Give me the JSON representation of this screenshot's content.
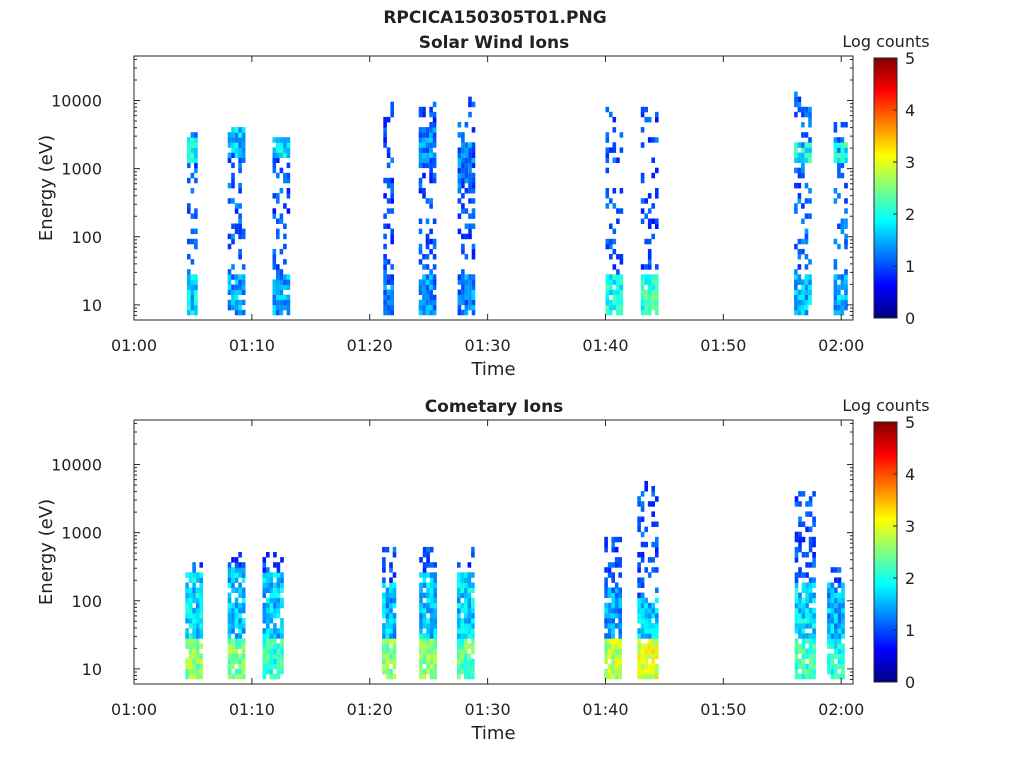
{
  "figure": {
    "title": "RPCICA150305T01.PNG"
  },
  "colormap": [
    "#00007f",
    "#0000ff",
    "#007fff",
    "#00ffff",
    "#7fff7f",
    "#ffff00",
    "#ff7f00",
    "#ff0000",
    "#7f0000"
  ],
  "chart_data": [
    {
      "type": "heatmap",
      "title": "Solar Wind Ions",
      "xlabel": "Time",
      "ylabel": "Energy (eV)",
      "x_ticks": [
        "01:00",
        "01:10",
        "01:20",
        "01:30",
        "01:40",
        "01:50",
        "02:00"
      ],
      "x_range_minutes": [
        0,
        61
      ],
      "y_scale": "log",
      "y_ticks": [
        "10",
        "100",
        "1000",
        "10000"
      ],
      "y_range": [
        6,
        45000
      ],
      "colorbar": {
        "label": "Log counts",
        "range": [
          0,
          5
        ],
        "ticks": [
          "0",
          "1",
          "2",
          "3",
          "4",
          "5"
        ]
      },
      "bursts": [
        {
          "t": 4.9,
          "w": 0.8,
          "bands": [
            [
              7,
              30,
              1.7
            ],
            [
              1300,
              3000,
              1.9
            ]
          ],
          "scatter": [
            [
              30,
              3500,
              0.35,
              1.1
            ]
          ]
        },
        {
          "t": 8.6,
          "w": 1.3,
          "bands": [
            [
              7,
              30,
              1.4
            ],
            [
              1500,
              4000,
              1.6
            ]
          ],
          "scatter": [
            [
              30,
              4000,
              0.35,
              1.1
            ]
          ]
        },
        {
          "t": 12.4,
          "w": 1.3,
          "bands": [
            [
              7,
              30,
              1.4
            ],
            [
              1500,
              3000,
              1.7
            ]
          ],
          "scatter": [
            [
              30,
              2500,
              0.35,
              1.0
            ]
          ]
        },
        {
          "t": 21.6,
          "w": 0.9,
          "bands": [
            [
              7,
              30,
              1.2
            ]
          ],
          "scatter": [
            [
              30,
              10000,
              0.3,
              1.0
            ]
          ]
        },
        {
          "t": 24.8,
          "w": 1.3,
          "bands": [
            [
              7,
              30,
              1.3
            ],
            [
              1000,
              4000,
              1.3
            ]
          ],
          "scatter": [
            [
              30,
              9000,
              0.3,
              1.0
            ]
          ]
        },
        {
          "t": 28.1,
          "w": 1.3,
          "bands": [
            [
              7,
              30,
              1.3
            ],
            [
              500,
              2500,
              1.2
            ]
          ],
          "scatter": [
            [
              30,
              12000,
              0.3,
              1.0
            ]
          ]
        },
        {
          "t": 40.6,
          "w": 1.2,
          "bands": [
            [
              7,
              30,
              2.0
            ]
          ],
          "scatter": [
            [
              30,
              8000,
              0.25,
              1.0
            ]
          ]
        },
        {
          "t": 43.7,
          "w": 1.4,
          "bands": [
            [
              7,
              30,
              2.1
            ]
          ],
          "scatter": [
            [
              30,
              8000,
              0.25,
              1.0
            ]
          ]
        },
        {
          "t": 56.6,
          "w": 1.2,
          "bands": [
            [
              7,
              30,
              1.5
            ],
            [
              1300,
              2500,
              1.9
            ]
          ],
          "scatter": [
            [
              30,
              14000,
              0.35,
              1.1
            ]
          ]
        },
        {
          "t": 59.8,
          "w": 0.9,
          "bands": [
            [
              7,
              30,
              1.5
            ],
            [
              1300,
              2500,
              1.9
            ]
          ],
          "scatter": [
            [
              30,
              5000,
              0.35,
              1.1
            ]
          ]
        }
      ]
    },
    {
      "type": "heatmap",
      "title": "Cometary Ions",
      "xlabel": "Time",
      "ylabel": "Energy (eV)",
      "x_ticks": [
        "01:00",
        "01:10",
        "01:20",
        "01:30",
        "01:40",
        "01:50",
        "02:00"
      ],
      "x_range_minutes": [
        0,
        61
      ],
      "y_scale": "log",
      "y_ticks": [
        "10",
        "100",
        "1000",
        "10000"
      ],
      "y_range": [
        6,
        45000
      ],
      "colorbar": {
        "label": "Log counts",
        "range": [
          0,
          5
        ],
        "ticks": [
          "0",
          "1",
          "2",
          "3",
          "4",
          "5"
        ]
      },
      "bursts": [
        {
          "t": 5.0,
          "w": 1.3,
          "bands": [
            [
              7,
              30,
              2.5
            ],
            [
              30,
              250,
              1.7
            ]
          ],
          "scatter": [
            [
              250,
              400,
              0.5,
              1.0
            ]
          ]
        },
        {
          "t": 8.7,
          "w": 1.5,
          "bands": [
            [
              7,
              30,
              2.4
            ],
            [
              30,
              300,
              1.6
            ]
          ],
          "scatter": [
            [
              300,
              500,
              0.5,
              1.0
            ]
          ]
        },
        {
          "t": 11.7,
          "w": 1.6,
          "bands": [
            [
              7,
              30,
              2.1
            ],
            [
              30,
              250,
              1.6
            ]
          ],
          "scatter": [
            [
              250,
              550,
              0.5,
              1.0
            ]
          ]
        },
        {
          "t": 21.6,
          "w": 1.1,
          "bands": [
            [
              7,
              30,
              2.5
            ],
            [
              30,
              200,
              1.5
            ]
          ],
          "scatter": [
            [
              200,
              650,
              0.5,
              1.0
            ]
          ]
        },
        {
          "t": 24.9,
          "w": 1.4,
          "bands": [
            [
              7,
              30,
              2.5
            ],
            [
              30,
              250,
              1.6
            ]
          ],
          "scatter": [
            [
              250,
              600,
              0.5,
              1.0
            ]
          ]
        },
        {
          "t": 28.1,
          "w": 1.4,
          "bands": [
            [
              7,
              30,
              2.3
            ],
            [
              30,
              250,
              1.7
            ]
          ],
          "scatter": [
            [
              250,
              650,
              0.5,
              1.0
            ]
          ]
        },
        {
          "t": 40.5,
          "w": 1.2,
          "bands": [
            [
              7,
              30,
              2.8
            ],
            [
              30,
              150,
              1.4
            ]
          ],
          "scatter": [
            [
              150,
              1100,
              0.4,
              1.0
            ]
          ]
        },
        {
          "t": 43.5,
          "w": 1.6,
          "bands": [
            [
              7,
              30,
              3.0
            ],
            [
              30,
              120,
              1.6
            ]
          ],
          "scatter": [
            [
              120,
              6000,
              0.35,
              1.0
            ]
          ]
        },
        {
          "t": 56.8,
          "w": 1.5,
          "bands": [
            [
              7,
              30,
              2.2
            ],
            [
              30,
              200,
              1.7
            ]
          ],
          "scatter": [
            [
              200,
              4000,
              0.4,
              1.0
            ]
          ]
        },
        {
          "t": 59.5,
          "w": 1.4,
          "bands": [
            [
              7,
              30,
              2.0
            ],
            [
              30,
              200,
              1.5
            ]
          ],
          "scatter": [
            [
              200,
              400,
              0.4,
              1.0
            ]
          ]
        }
      ]
    }
  ]
}
